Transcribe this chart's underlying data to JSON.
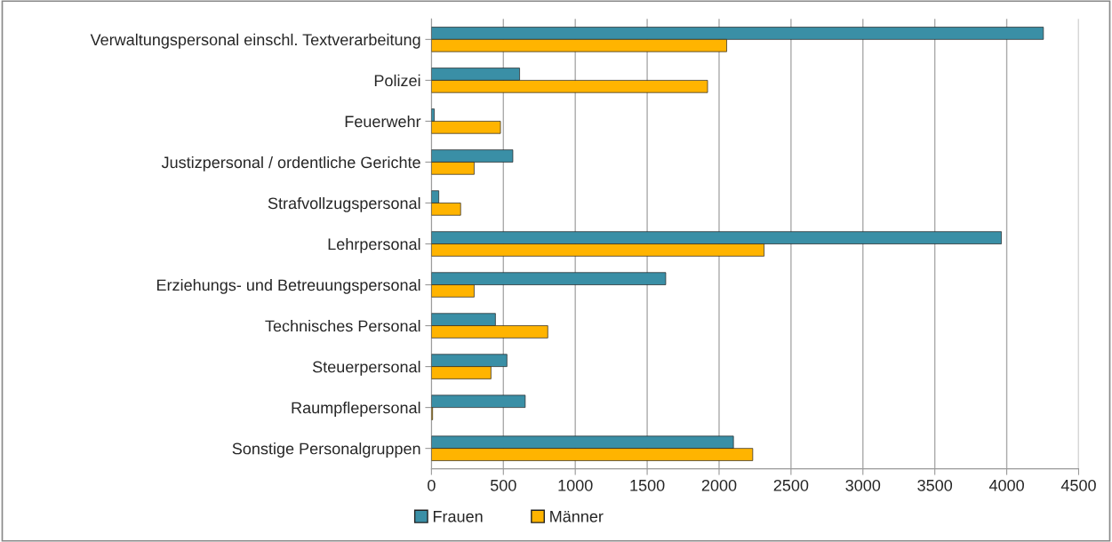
{
  "chart_data": {
    "type": "bar",
    "orientation": "horizontal",
    "categories": [
      "Verwaltungspersonal einschl. Textverarbeitung",
      "Polizei",
      "Feuerwehr",
      "Justizpersonal / ordentliche Gerichte",
      "Strafvollzugspersonal",
      "Lehrpersonal",
      "Erziehungs- und Betreuungspersonal",
      "Technisches Personal",
      "Steuerpersonal",
      "Raumpflepersonal",
      "Sonstige Personalgruppen"
    ],
    "series": [
      {
        "name": "Frauen",
        "color": "#3a8fa6",
        "values": [
          4255,
          613,
          20,
          566,
          51,
          3963,
          1629,
          445,
          525,
          652,
          2100
        ]
      },
      {
        "name": "Männer",
        "color": "#ffb400",
        "values": [
          2053,
          1920,
          480,
          297,
          203,
          2313,
          297,
          809,
          414,
          8,
          2234
        ]
      }
    ],
    "xlim": [
      0,
      4500
    ],
    "xticks": [
      0,
      500,
      1000,
      1500,
      2000,
      2500,
      3000,
      3500,
      4000,
      4500
    ],
    "grid": "x",
    "legend": "bottom"
  }
}
